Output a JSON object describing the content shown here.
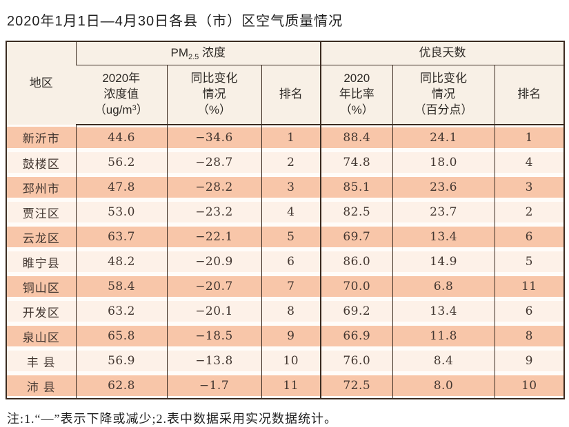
{
  "page": {
    "title": "2020年1月1日—4月30日各县（市）区空气质量情况",
    "note": "注:1.“—”表示下降或减少;2.表中数据采用实况数据统计。"
  },
  "colors": {
    "row_odd": "#f8c6a9",
    "row_even": "#fdf1e8",
    "header_bg": "#f8f0e6",
    "border": "#3b2b20"
  },
  "table": {
    "header": {
      "region": "地区",
      "pm_group": {
        "prefix": "PM",
        "sub": "2.5",
        "suffix": " 浓度"
      },
      "pm_value_lines": [
        "2020年",
        "浓度值"
      ],
      "pm_value_unit": {
        "pre": "（ug/m",
        "sup": "3",
        "post": "）"
      },
      "pm_change_lines": [
        "同比变化",
        "情况",
        "（%）"
      ],
      "pm_rank": "排名",
      "good_group": "优良天数",
      "good_rate_lines": [
        "2020",
        "年比率",
        "（%）"
      ],
      "good_change_lines": [
        "同比变化",
        "情况",
        "（百分点）"
      ],
      "good_rank": "排名"
    },
    "row_fields": [
      "region",
      "pm_value",
      "pm_change",
      "pm_rank",
      "good_rate",
      "good_change",
      "good_rank"
    ],
    "rows": [
      {
        "region": "新沂市",
        "pm_value": "44.6",
        "pm_change": "−34.6",
        "pm_rank": "1",
        "good_rate": "88.4",
        "good_change": "24.1",
        "good_rank": "1"
      },
      {
        "region": "鼓楼区",
        "pm_value": "56.2",
        "pm_change": "−28.7",
        "pm_rank": "2",
        "good_rate": "74.8",
        "good_change": "18.0",
        "good_rank": "4"
      },
      {
        "region": "邳州市",
        "pm_value": "47.8",
        "pm_change": "−28.2",
        "pm_rank": "3",
        "good_rate": "85.1",
        "good_change": "23.6",
        "good_rank": "3"
      },
      {
        "region": "贾汪区",
        "pm_value": "53.0",
        "pm_change": "−23.2",
        "pm_rank": "4",
        "good_rate": "82.5",
        "good_change": "23.7",
        "good_rank": "2"
      },
      {
        "region": "云龙区",
        "pm_value": "63.7",
        "pm_change": "−22.1",
        "pm_rank": "5",
        "good_rate": "69.7",
        "good_change": "13.4",
        "good_rank": "6"
      },
      {
        "region": "睢宁县",
        "pm_value": "48.2",
        "pm_change": "−20.9",
        "pm_rank": "6",
        "good_rate": "86.0",
        "good_change": "14.9",
        "good_rank": "5"
      },
      {
        "region": "铜山区",
        "pm_value": "58.4",
        "pm_change": "−20.7",
        "pm_rank": "7",
        "good_rate": "70.0",
        "good_change": "6.8",
        "good_rank": "11"
      },
      {
        "region": "开发区",
        "pm_value": "63.2",
        "pm_change": "−20.1",
        "pm_rank": "8",
        "good_rate": "69.2",
        "good_change": "13.4",
        "good_rank": "6"
      },
      {
        "region": "泉山区",
        "pm_value": "65.8",
        "pm_change": "−18.5",
        "pm_rank": "9",
        "good_rate": "66.9",
        "good_change": "11.8",
        "good_rank": "8"
      },
      {
        "region": "丰 县",
        "pm_value": "56.9",
        "pm_change": "−13.8",
        "pm_rank": "10",
        "good_rate": "76.0",
        "good_change": "8.4",
        "good_rank": "9"
      },
      {
        "region": "沛 县",
        "pm_value": "62.8",
        "pm_change": "−1.7",
        "pm_rank": "11",
        "good_rate": "72.5",
        "good_change": "8.0",
        "good_rank": "10"
      }
    ]
  }
}
